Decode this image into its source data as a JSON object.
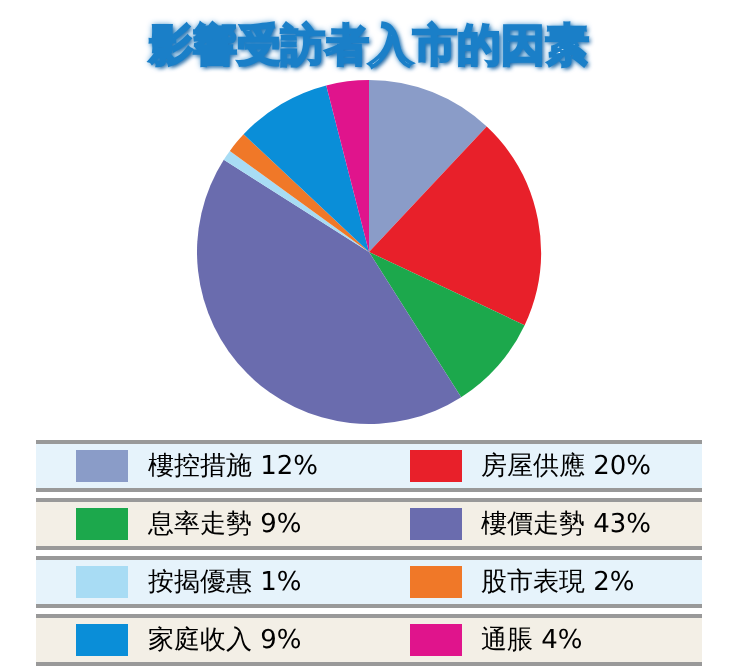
{
  "chart_data": {
    "type": "pie",
    "title": "影響受訪者入市的因素",
    "categories": [
      "樓控措施",
      "房屋供應",
      "息率走勢",
      "樓價走勢",
      "按揭優惠",
      "股市表現",
      "家庭收入",
      "通脹"
    ],
    "values": [
      12,
      20,
      9,
      43,
      1,
      2,
      9,
      4
    ],
    "value_labels": [
      "12%",
      "20%",
      "9%",
      "43%",
      "1%",
      "2%",
      "9%",
      "4%"
    ],
    "colors": [
      "#8a9cc8",
      "#e8202a",
      "#1ca84c",
      "#6a6cae",
      "#a8dcf4",
      "#f07828",
      "#0a8ed8",
      "#e0148c"
    ],
    "legend": "bottom"
  }
}
